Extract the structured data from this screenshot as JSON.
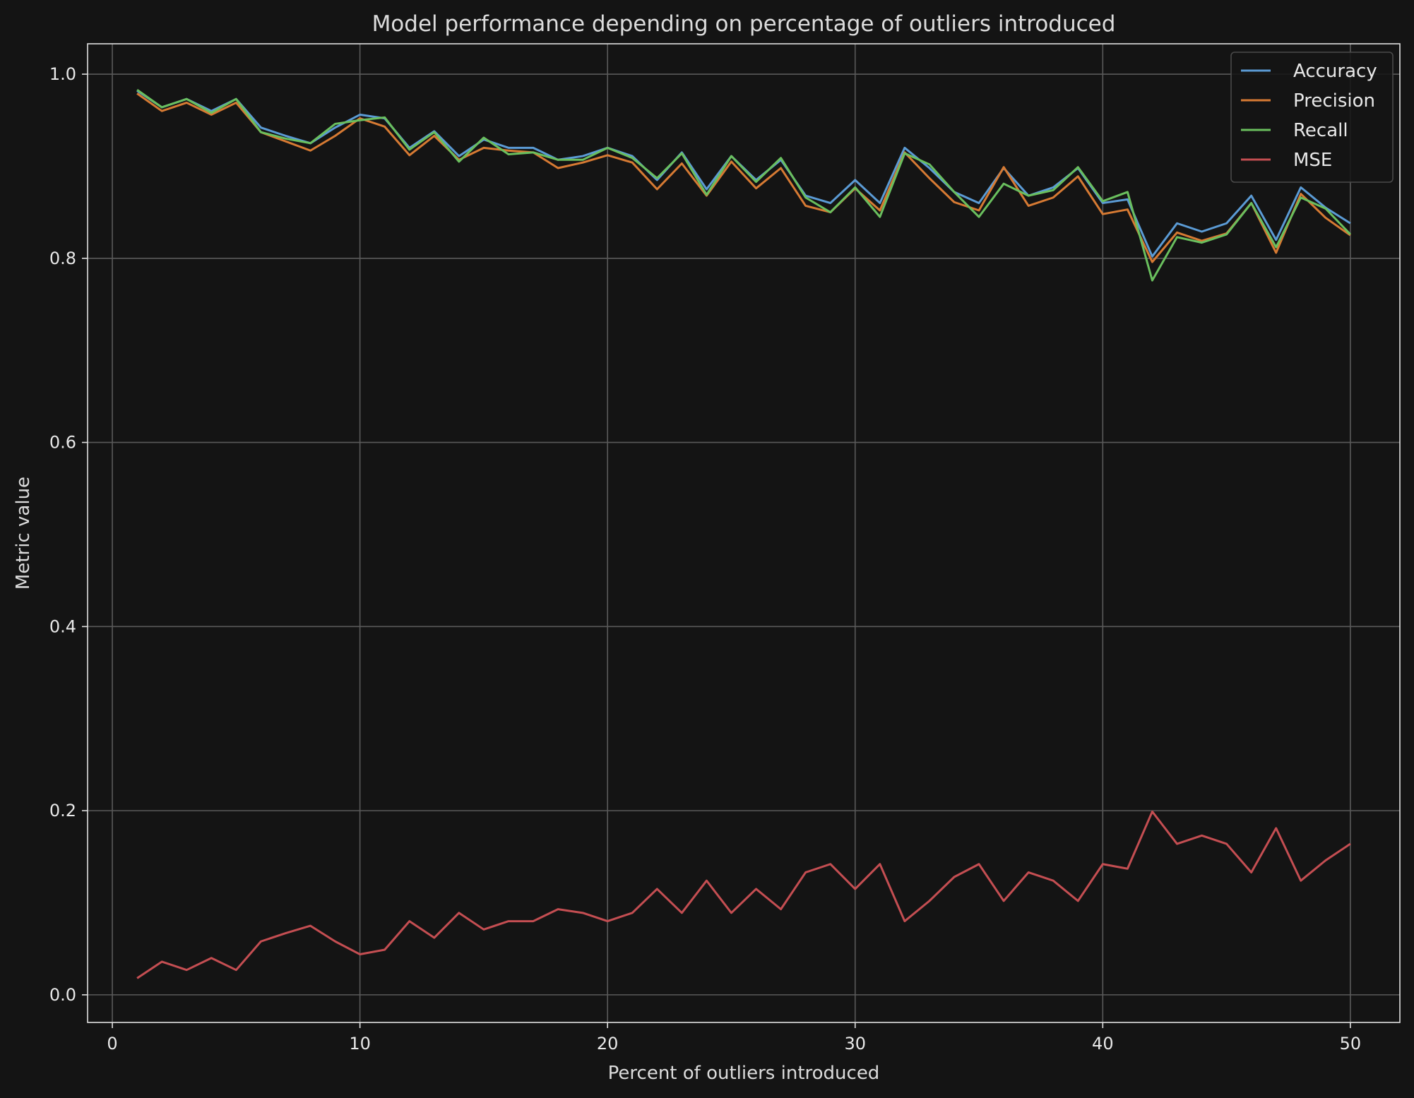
{
  "chart_data": {
    "type": "line",
    "title": "Model performance depending on percentage of outliers introduced",
    "xlabel": "Percent of outliers introduced",
    "ylabel": "Metric value",
    "xlim": [
      -1,
      52
    ],
    "ylim": [
      -0.03,
      1.033
    ],
    "xticks": [
      0,
      10,
      20,
      30,
      40,
      50
    ],
    "yticks": [
      0.0,
      0.2,
      0.4,
      0.6,
      0.8,
      1.0
    ],
    "xtick_labels": [
      "0",
      "10",
      "20",
      "30",
      "40",
      "50"
    ],
    "ytick_labels": [
      "0.0",
      "0.2",
      "0.4",
      "0.6",
      "0.8",
      "1.0"
    ],
    "grid": true,
    "legend_position": "top-right",
    "x": [
      1,
      2,
      3,
      4,
      5,
      6,
      7,
      8,
      9,
      10,
      11,
      12,
      13,
      14,
      15,
      16,
      17,
      18,
      19,
      20,
      21,
      22,
      23,
      24,
      25,
      26,
      27,
      28,
      29,
      30,
      31,
      32,
      33,
      34,
      35,
      36,
      37,
      38,
      39,
      40,
      41,
      42,
      43,
      44,
      45,
      46,
      47,
      48,
      49,
      50
    ],
    "series": [
      {
        "name": "Accuracy",
        "color": "#5b9bd5",
        "values": [
          0.982,
          0.964,
          0.973,
          0.96,
          0.973,
          0.942,
          0.933,
          0.925,
          0.942,
          0.956,
          0.952,
          0.92,
          0.938,
          0.911,
          0.929,
          0.92,
          0.92,
          0.907,
          0.911,
          0.92,
          0.911,
          0.885,
          0.915,
          0.875,
          0.911,
          0.885,
          0.907,
          0.868,
          0.86,
          0.885,
          0.86,
          0.92,
          0.898,
          0.872,
          0.86,
          0.898,
          0.868,
          0.877,
          0.898,
          0.86,
          0.864,
          0.802,
          0.838,
          0.829,
          0.838,
          0.868,
          0.82,
          0.877,
          0.855,
          0.838
        ]
      },
      {
        "name": "Precision",
        "color": "#d67a33",
        "values": [
          0.979,
          0.96,
          0.969,
          0.956,
          0.969,
          0.937,
          0.927,
          0.917,
          0.933,
          0.952,
          0.943,
          0.912,
          0.933,
          0.907,
          0.92,
          0.917,
          0.915,
          0.898,
          0.904,
          0.912,
          0.904,
          0.875,
          0.903,
          0.868,
          0.905,
          0.876,
          0.898,
          0.857,
          0.85,
          0.876,
          0.852,
          0.915,
          0.887,
          0.861,
          0.852,
          0.899,
          0.857,
          0.866,
          0.889,
          0.848,
          0.853,
          0.796,
          0.828,
          0.819,
          0.827,
          0.86,
          0.806,
          0.87,
          0.844,
          0.825
        ]
      },
      {
        "name": "Recall",
        "color": "#6abf5e",
        "values": [
          0.983,
          0.964,
          0.973,
          0.958,
          0.973,
          0.937,
          0.93,
          0.925,
          0.946,
          0.95,
          0.953,
          0.918,
          0.937,
          0.905,
          0.931,
          0.913,
          0.915,
          0.907,
          0.907,
          0.92,
          0.909,
          0.887,
          0.914,
          0.869,
          0.911,
          0.883,
          0.909,
          0.866,
          0.85,
          0.877,
          0.845,
          0.914,
          0.902,
          0.872,
          0.845,
          0.881,
          0.868,
          0.874,
          0.899,
          0.862,
          0.872,
          0.776,
          0.823,
          0.817,
          0.826,
          0.86,
          0.812,
          0.866,
          0.854,
          0.826
        ]
      },
      {
        "name": "MSE",
        "color": "#c44e52",
        "values": [
          0.018,
          0.036,
          0.027,
          0.04,
          0.027,
          0.058,
          0.067,
          0.075,
          0.058,
          0.044,
          0.049,
          0.08,
          0.062,
          0.089,
          0.071,
          0.08,
          0.08,
          0.093,
          0.089,
          0.08,
          0.089,
          0.115,
          0.089,
          0.124,
          0.089,
          0.115,
          0.093,
          0.133,
          0.142,
          0.115,
          0.142,
          0.08,
          0.102,
          0.128,
          0.142,
          0.102,
          0.133,
          0.124,
          0.102,
          0.142,
          0.137,
          0.199,
          0.164,
          0.173,
          0.164,
          0.133,
          0.181,
          0.124,
          0.146,
          0.164
        ]
      }
    ]
  }
}
